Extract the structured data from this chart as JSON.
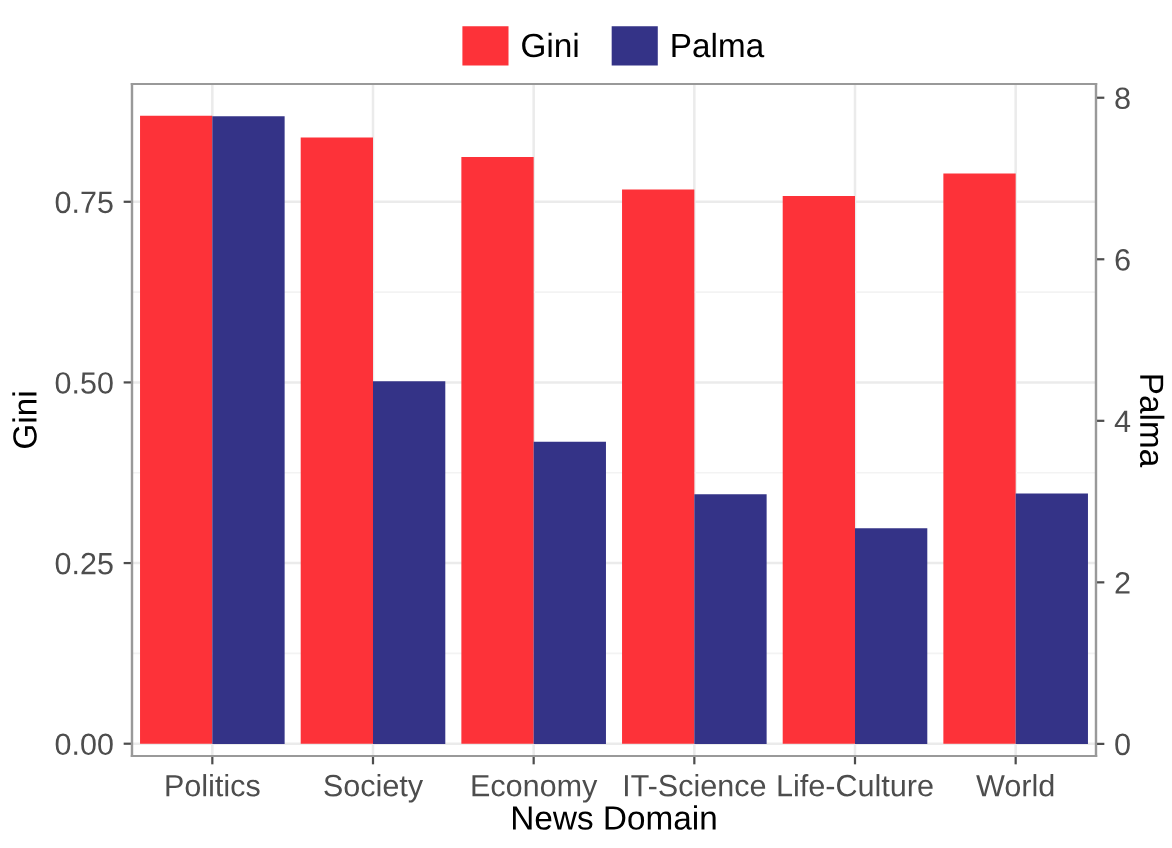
{
  "chart_data": {
    "type": "bar",
    "xlabel": "News Domain",
    "ylabel": "Gini",
    "y2label": "Palma",
    "categories": [
      "Politics",
      "Society",
      "Economy",
      "IT-Science",
      "Life-Culture",
      "World"
    ],
    "series": [
      {
        "name": "Gini",
        "color": "#fd3239",
        "values": [
          0.869,
          0.839,
          0.812,
          0.767,
          0.758,
          0.789
        ]
      },
      {
        "name": "Palma",
        "color": "#343387",
        "axis": "y2",
        "values": [
          7.77,
          4.49,
          3.74,
          3.09,
          2.67,
          3.1
        ]
      }
    ],
    "ylim": [
      -0.017,
      0.913
    ],
    "yticks": [
      {
        "value": 0,
        "label": "0.00"
      },
      {
        "value": 0.25,
        "label": "0.25"
      },
      {
        "value": 0.5,
        "label": "0.50"
      },
      {
        "value": 0.75,
        "label": "0.75"
      }
    ],
    "y2lim": [
      -0.15,
      8.17
    ],
    "y2ticks": [
      0,
      2,
      4,
      6,
      8
    ],
    "grid": true,
    "legend": "top"
  }
}
